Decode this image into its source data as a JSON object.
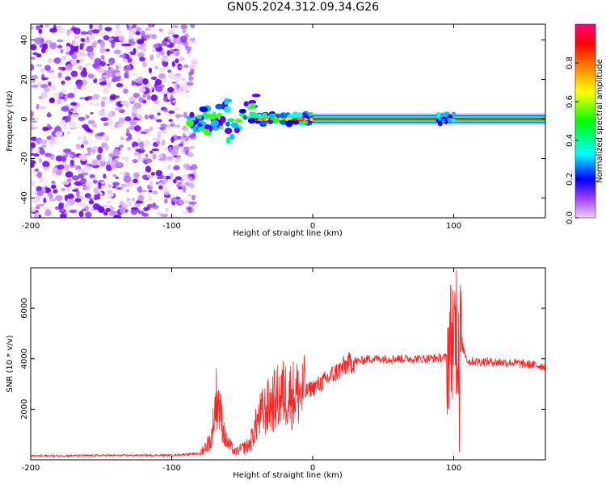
{
  "title": "GN05.2024.312.09.34.G26",
  "chart_data": [
    {
      "type": "heatmap",
      "xlabel": "Height of straight line (km)",
      "ylabel": "Frequency (Hz)",
      "xlim": [
        -200,
        165
      ],
      "ylim": [
        -50,
        48
      ],
      "xticks": [
        -200,
        -100,
        0,
        100
      ],
      "yticks": [
        -40,
        -20,
        0,
        20,
        40
      ],
      "grid": false,
      "colorbar": {
        "label": "Normalized spectral amplitude",
        "range": [
          0,
          1
        ],
        "ticks": [
          0.0,
          0.2,
          0.4,
          0.6,
          0.8
        ],
        "colors": [
          "#f2d0ff",
          "#7a00ff",
          "#0000ff",
          "#00ffff",
          "#00ff00",
          "#ffff00",
          "#ff8000",
          "#ff0000",
          "#ff0080"
        ]
      },
      "features": [
        {
          "x_range": [
            -200,
            -88
          ],
          "freq_range": [
            -50,
            48
          ],
          "amplitude": 0.1,
          "description": "noise"
        },
        {
          "x_range": [
            -88,
            0
          ],
          "freq_center": 0,
          "amplitude": 0.35
        },
        {
          "x_range": [
            0,
            165
          ],
          "freq_center": 0,
          "amplitude": 1.0
        }
      ]
    },
    {
      "type": "line",
      "xlabel": "Height of straight line (km)",
      "ylabel": "SNR (10 * v/v)",
      "xlim": [
        -200,
        165
      ],
      "ylim": [
        0,
        7600
      ],
      "xticks": [
        -200,
        -100,
        0,
        100
      ],
      "yticks": [
        2000,
        4000,
        6000
      ],
      "color": "#ff2020",
      "envelope": [
        {
          "x": -200,
          "y": 150
        },
        {
          "x": -150,
          "y": 170
        },
        {
          "x": -100,
          "y": 180
        },
        {
          "x": -80,
          "y": 250
        },
        {
          "x": -72,
          "y": 800
        },
        {
          "x": -68,
          "y": 2600
        },
        {
          "x": -62,
          "y": 800
        },
        {
          "x": -55,
          "y": 300
        },
        {
          "x": -45,
          "y": 600
        },
        {
          "x": -38,
          "y": 1700
        },
        {
          "x": -30,
          "y": 2200
        },
        {
          "x": -22,
          "y": 2600
        },
        {
          "x": -12,
          "y": 2600
        },
        {
          "x": -5,
          "y": 2700
        },
        {
          "x": 5,
          "y": 3000
        },
        {
          "x": 15,
          "y": 3400
        },
        {
          "x": 25,
          "y": 3800
        },
        {
          "x": 40,
          "y": 4000
        },
        {
          "x": 80,
          "y": 4000
        },
        {
          "x": 95,
          "y": 4050
        },
        {
          "x": 100,
          "y": 5200
        },
        {
          "x": 104,
          "y": 4800
        },
        {
          "x": 110,
          "y": 3900
        },
        {
          "x": 140,
          "y": 3850
        },
        {
          "x": 165,
          "y": 3700
        }
      ]
    }
  ]
}
